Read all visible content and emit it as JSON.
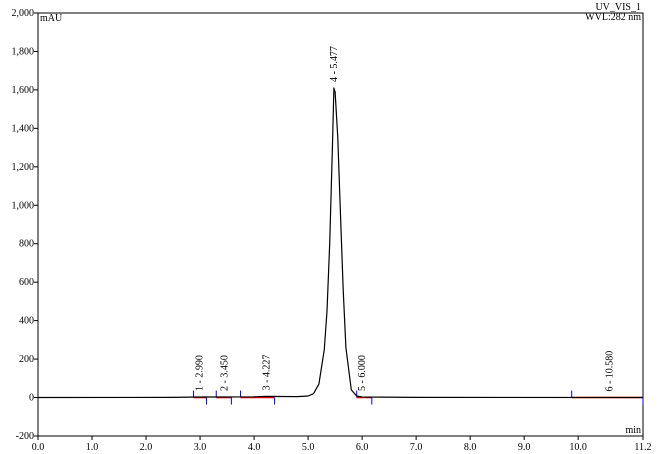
{
  "chart_data": {
    "type": "line",
    "y_unit": "mAU",
    "x_unit": "min",
    "channel": "UV_VIS_1",
    "wavelength": "WVL:282 nm",
    "x": [
      0,
      2.5,
      2.99,
      3.45,
      4.0,
      4.227,
      4.8,
      5.0,
      5.1,
      5.2,
      5.3,
      5.35,
      5.4,
      5.45,
      5.477,
      5.5,
      5.55,
      5.6,
      5.65,
      5.7,
      5.8,
      5.9,
      6.0,
      7.0,
      11.2
    ],
    "series": [
      {
        "color": "#000000",
        "values": [
          0,
          1,
          3,
          3,
          4,
          6,
          5,
          8,
          20,
          70,
          250,
          450,
          800,
          1300,
          1610,
          1590,
          1350,
          950,
          560,
          260,
          40,
          8,
          3,
          1,
          0
        ]
      }
    ],
    "peaks": [
      {
        "label": "1 - 2.990",
        "x": 2.99,
        "y": 3
      },
      {
        "label": "2 - 3.450",
        "x": 3.45,
        "y": 3
      },
      {
        "label": "3 - 4.227",
        "x": 4.227,
        "y": 6
      },
      {
        "label": "4 - 5.477",
        "x": 5.477,
        "y": 1610
      },
      {
        "label": "5 - 6.000",
        "x": 6.0,
        "y": 3
      },
      {
        "label": "6 - 10.580",
        "x": 10.58,
        "y": 0
      }
    ],
    "baselines": [
      [
        2.88,
        3.12
      ],
      [
        3.3,
        3.58
      ],
      [
        3.75,
        4.38
      ],
      [
        5.9,
        6.18
      ],
      [
        9.88,
        11.2
      ]
    ],
    "baseline_color": "#ff0000",
    "marker_color": "#0000ff",
    "xlim": [
      0,
      11.2
    ],
    "xticks": [
      {
        "value": 0,
        "label": "0.0"
      },
      {
        "value": 1,
        "label": "1.0"
      },
      {
        "value": 2,
        "label": "2.0"
      },
      {
        "value": 3,
        "label": "3.0"
      },
      {
        "value": 4,
        "label": "4.0"
      },
      {
        "value": 5,
        "label": "5.0"
      },
      {
        "value": 6,
        "label": "6.0"
      },
      {
        "value": 7,
        "label": "7.0"
      },
      {
        "value": 8,
        "label": "8.0"
      },
      {
        "value": 9,
        "label": "9.0"
      },
      {
        "value": 10,
        "label": "10.0"
      },
      11.2
    ],
    "ylim": [
      -200,
      2000
    ],
    "yticks": [
      -200,
      0,
      200,
      400,
      600,
      800,
      {
        "value": 1000,
        "label": "1,000"
      },
      {
        "value": 1200,
        "label": "1,200"
      },
      {
        "value": 1400,
        "label": "1,400"
      },
      {
        "value": 1600,
        "label": "1,600"
      },
      {
        "value": 1800,
        "label": "1,800"
      },
      {
        "value": 2000,
        "label": "2,000"
      }
    ]
  }
}
